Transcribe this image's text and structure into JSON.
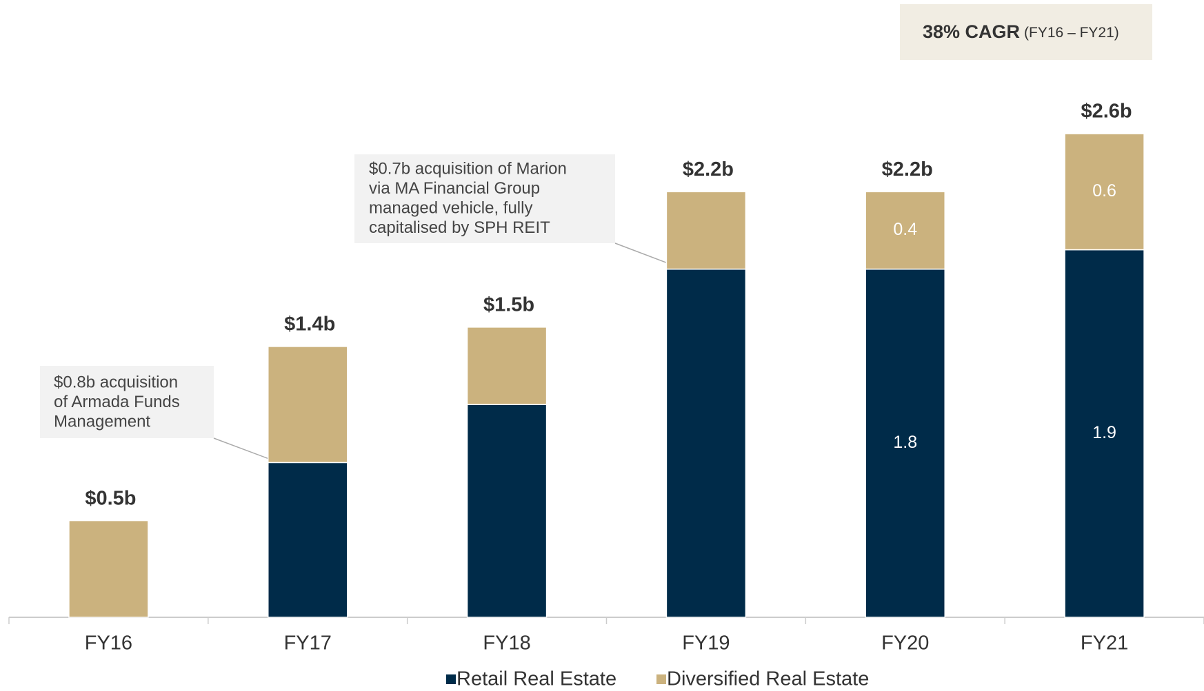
{
  "chart_data": {
    "type": "stacked_bar",
    "categories": [
      "FY16",
      "FY17",
      "FY18",
      "FY19",
      "FY20",
      "FY21"
    ],
    "series": [
      {
        "name": "Retail Real Estate",
        "color": "#002b49",
        "values": [
          0,
          0.8,
          1.1,
          1.8,
          1.8,
          1.9
        ],
        "value_labels": [
          null,
          null,
          null,
          null,
          "1.8",
          "1.9"
        ]
      },
      {
        "name": "Diversified Real Estate",
        "color": "#cbb27e",
        "values": [
          0.5,
          0.6,
          0.4,
          0.4,
          0.4,
          0.6
        ],
        "value_labels": [
          null,
          null,
          null,
          null,
          "0.4",
          "0.6"
        ]
      }
    ],
    "totals": {
      "values": [
        0.5,
        1.4,
        1.5,
        2.2,
        2.2,
        2.6
      ],
      "value_labels": [
        "$0.5b",
        "$1.4b",
        "$1.5b",
        "$2.2b",
        "$2.2b",
        "$2.6b"
      ]
    },
    "ylim": [
      0,
      2.6
    ],
    "annotations": [
      {
        "lines": [
          "$0.8b acquisition",
          "of Armada Funds",
          "Management"
        ]
      },
      {
        "lines": [
          "$0.7b acquisition of Marion",
          "via MA Financial Group",
          "managed vehicle, fully",
          "capitalised by SPH REIT"
        ]
      }
    ],
    "badge": {
      "bold": "38% CAGR",
      "rest": "(FY16 – FY21)"
    },
    "legend": "bottom"
  }
}
